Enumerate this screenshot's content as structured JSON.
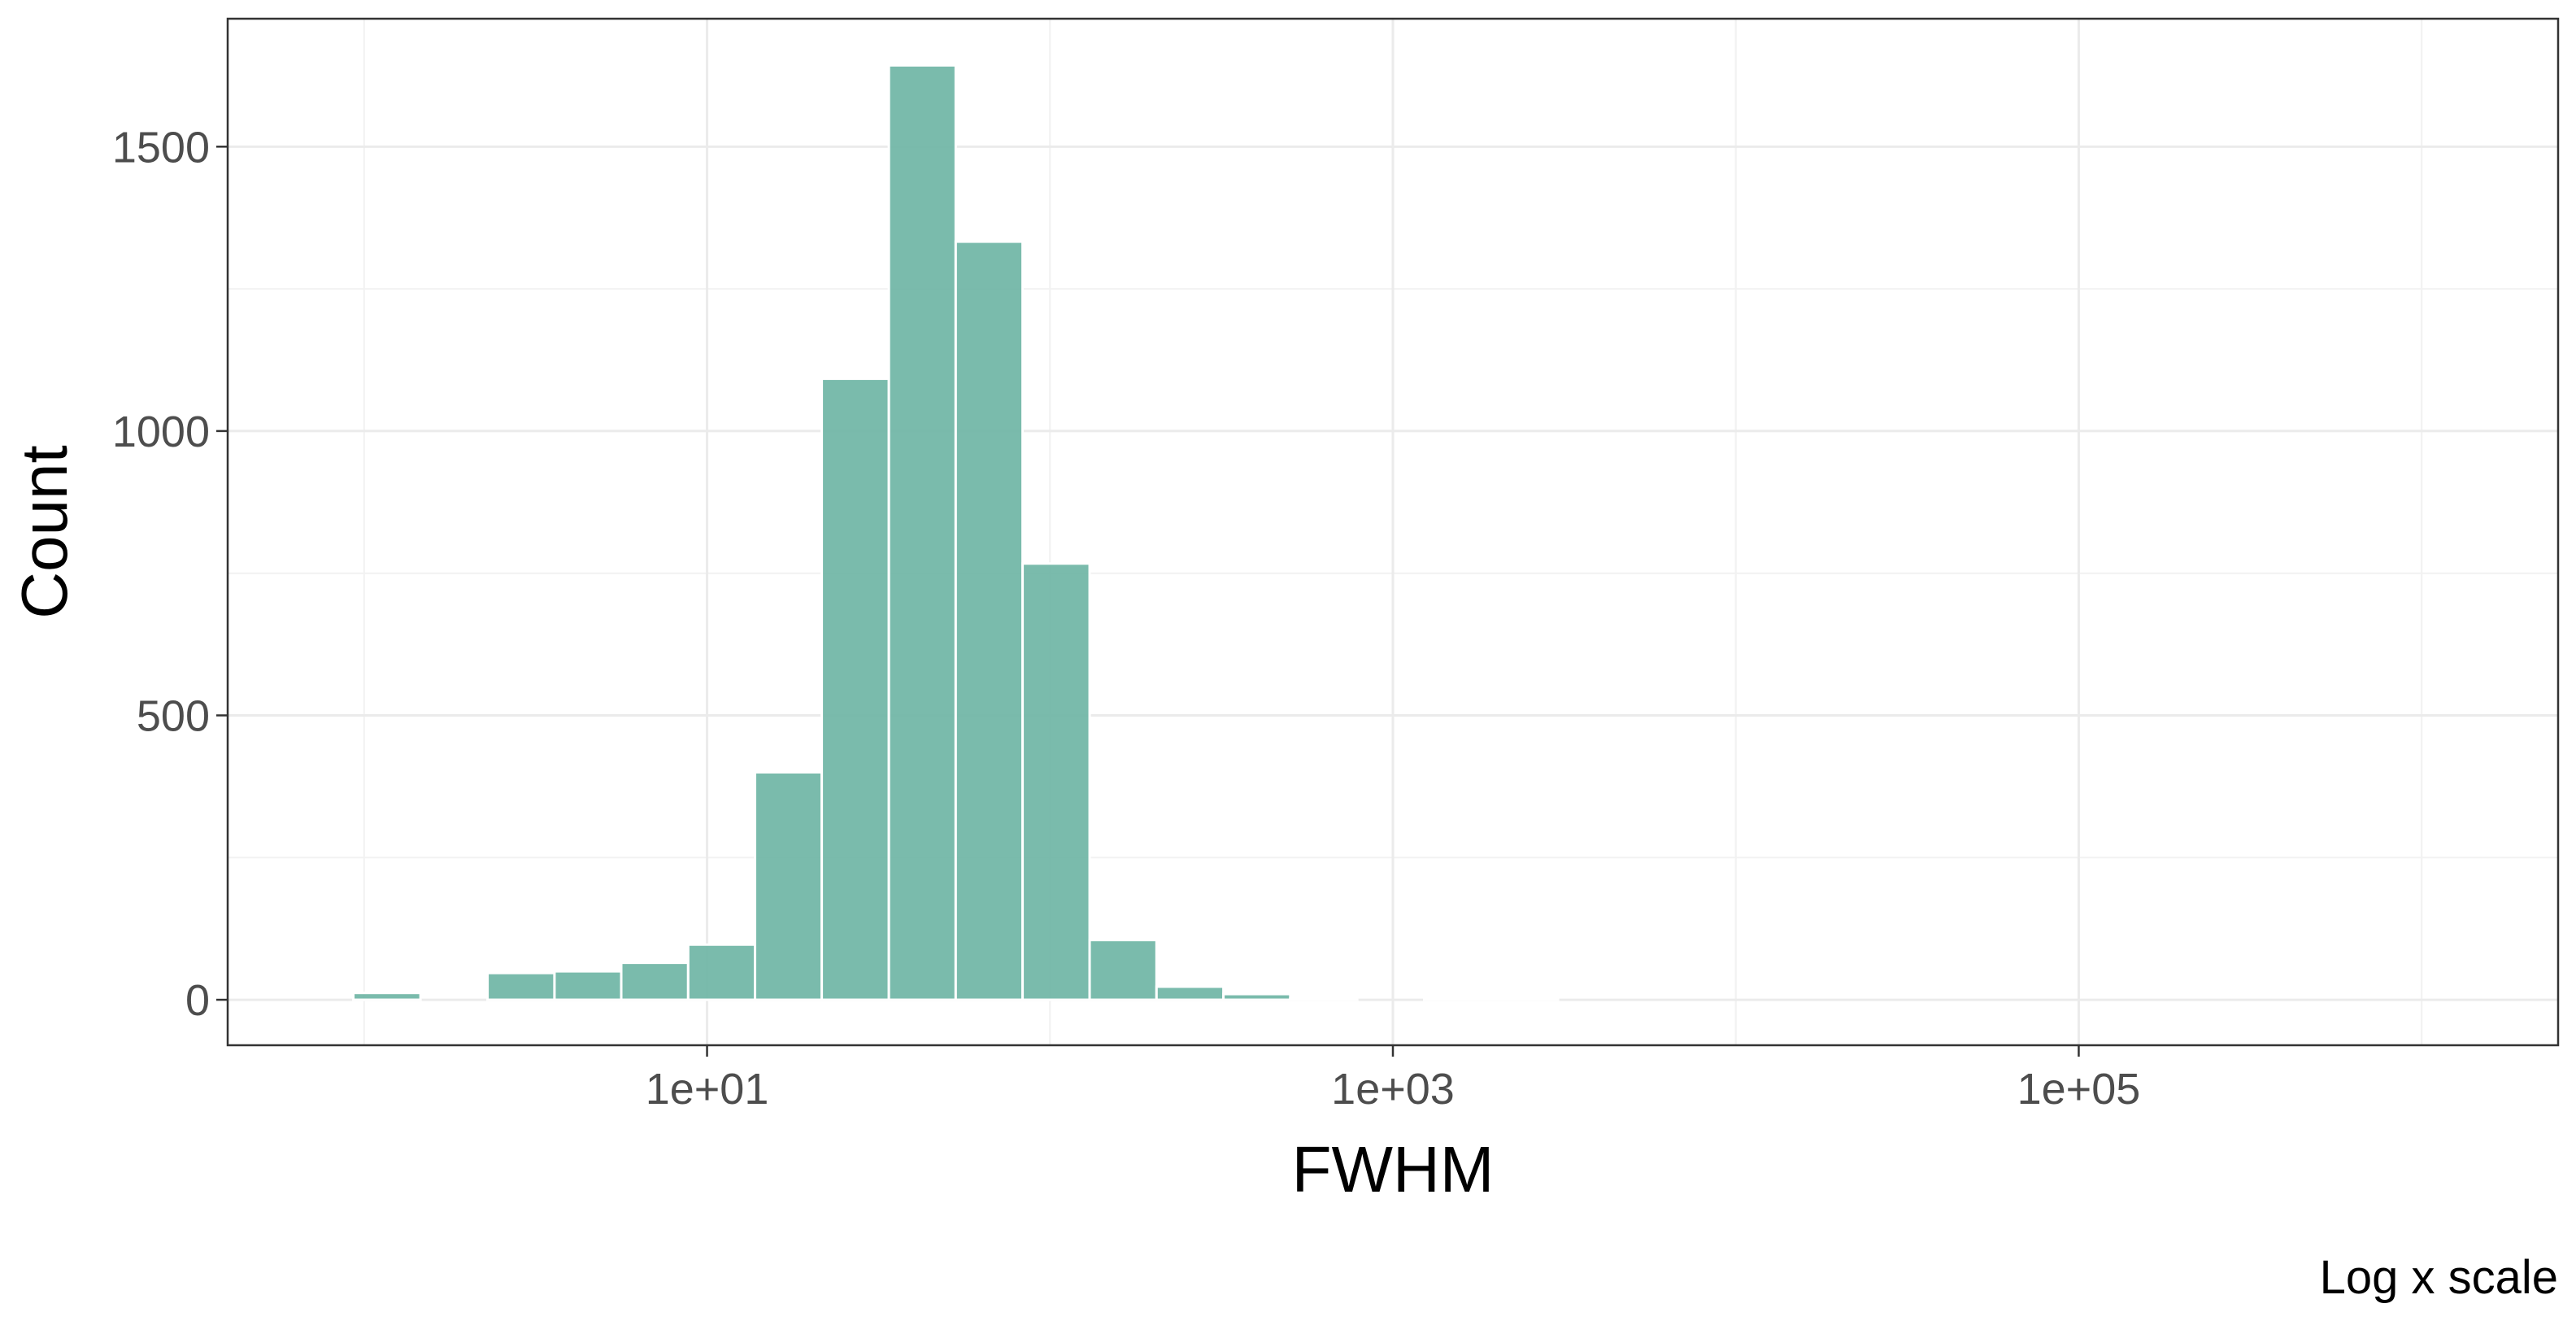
{
  "chart_data": {
    "type": "bar",
    "title": "",
    "xlabel": "FWHM",
    "ylabel": "Count",
    "caption": "Log x scale",
    "x_scale": "log10",
    "xlim": [
      0.4,
      2500000
    ],
    "ylim": [
      -80,
      1725
    ],
    "grid": true,
    "legend": "none",
    "bar_color": "#6fb5a5",
    "bar_outline_color": "#ffffff",
    "x_ticks": [
      {
        "label": "1e+01",
        "value": 10
      },
      {
        "label": "1e+03",
        "value": 1000
      },
      {
        "label": "1e+05",
        "value": 100000
      }
    ],
    "y_ticks": [
      {
        "label": "0",
        "value": 0
      },
      {
        "label": "500",
        "value": 500
      },
      {
        "label": "1000",
        "value": 1000
      },
      {
        "label": "1500",
        "value": 1500
      }
    ],
    "bins": [
      {
        "x_from": 0.93,
        "x_to": 1.46,
        "count": 12
      },
      {
        "x_from": 1.46,
        "x_to": 2.29,
        "count": 0
      },
      {
        "x_from": 2.29,
        "x_to": 3.59,
        "count": 47
      },
      {
        "x_from": 3.59,
        "x_to": 5.62,
        "count": 50
      },
      {
        "x_from": 5.62,
        "x_to": 8.81,
        "count": 65
      },
      {
        "x_from": 8.81,
        "x_to": 13.8,
        "count": 97
      },
      {
        "x_from": 13.8,
        "x_to": 21.6,
        "count": 400
      },
      {
        "x_from": 21.6,
        "x_to": 33.9,
        "count": 1092
      },
      {
        "x_from": 33.9,
        "x_to": 53.1,
        "count": 1643
      },
      {
        "x_from": 53.1,
        "x_to": 83.2,
        "count": 1333
      },
      {
        "x_from": 83.2,
        "x_to": 130.5,
        "count": 767
      },
      {
        "x_from": 130.5,
        "x_to": 204.5,
        "count": 105
      },
      {
        "x_from": 204.5,
        "x_to": 320.5,
        "count": 23
      },
      {
        "x_from": 320.5,
        "x_to": 502,
        "count": 10
      },
      {
        "x_from": 502,
        "x_to": 787,
        "count": 2
      },
      {
        "x_from": 787,
        "x_to": 1234,
        "count": 0
      },
      {
        "x_from": 1234,
        "x_to": 1934,
        "count": 1
      },
      {
        "x_from": 1934,
        "x_to": 3030,
        "count": 1
      }
    ]
  }
}
